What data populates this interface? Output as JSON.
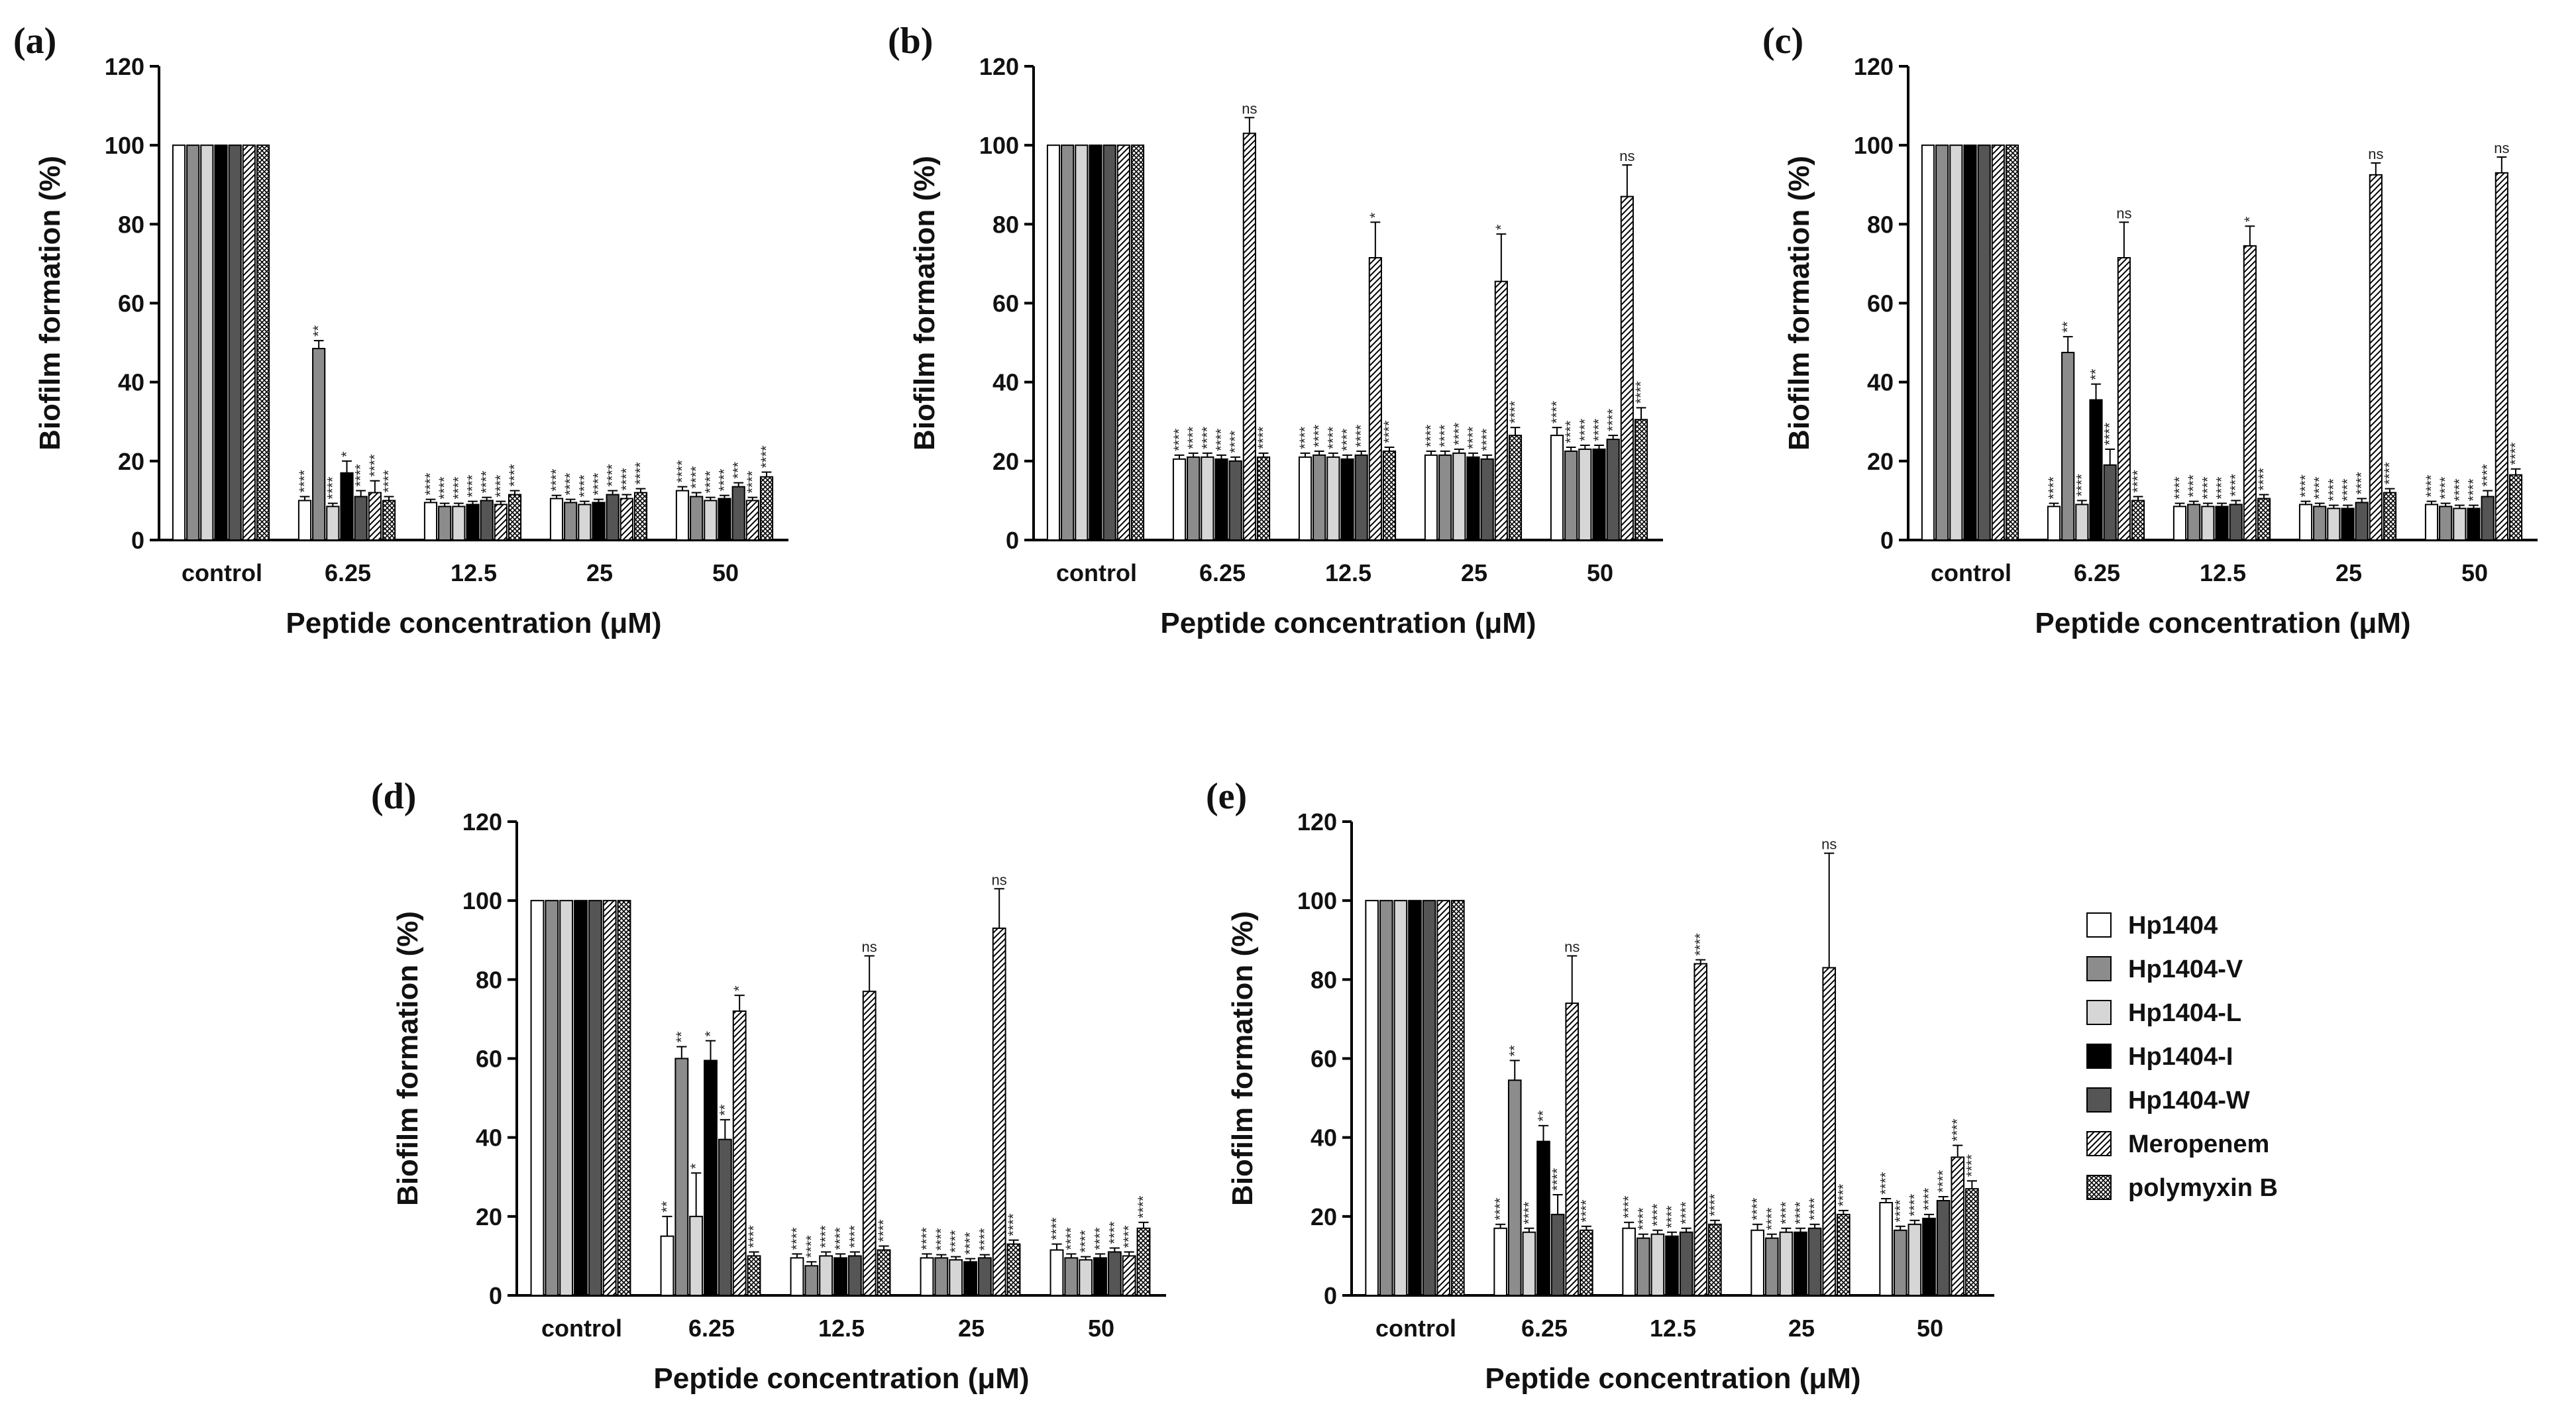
{
  "legend": [
    {
      "name": "Hp1404",
      "fill": "#ffffff"
    },
    {
      "name": "Hp1404-V",
      "fill": "#8c8c8c"
    },
    {
      "name": "Hp1404-L",
      "fill": "#d6d6d6"
    },
    {
      "name": "Hp1404-I",
      "fill": "#000000"
    },
    {
      "name": "Hp1404-W",
      "fill": "#555555"
    },
    {
      "name": "Meropenem",
      "fill": "hatch"
    },
    {
      "name": "polymyxin B",
      "fill": "crosshatch"
    }
  ],
  "chart_data": [
    {
      "panel": "(a)",
      "type": "bar",
      "ylabel": "Biofilm formation (%)",
      "xlabel": "Peptide concentration (μM)",
      "ylim": [
        0,
        120
      ],
      "yticks": [
        "0",
        "20",
        "40",
        "60",
        "80",
        "100",
        "120"
      ],
      "categories": [
        "control",
        "6.25",
        "12.5",
        "25",
        "50"
      ],
      "series": [
        {
          "name": "Hp1404",
          "values": [
            100,
            10,
            9.5,
            10.5,
            12.5
          ],
          "errors": [
            0,
            1,
            0.8,
            0.8,
            1
          ]
        },
        {
          "name": "Hp1404-V",
          "values": [
            100,
            48.5,
            8.5,
            9.5,
            11
          ],
          "errors": [
            0,
            2,
            0.8,
            0.8,
            1
          ]
        },
        {
          "name": "Hp1404-L",
          "values": [
            100,
            8.5,
            8.5,
            9,
            10
          ],
          "errors": [
            0,
            0.8,
            0.8,
            0.8,
            0.8
          ]
        },
        {
          "name": "Hp1404-I",
          "values": [
            100,
            17,
            9,
            9.5,
            10.5
          ],
          "errors": [
            0,
            3,
            0.8,
            0.8,
            0.8
          ]
        },
        {
          "name": "Hp1404-W",
          "values": [
            100,
            11,
            10,
            11.5,
            13.5
          ],
          "errors": [
            0,
            1.5,
            0.8,
            1,
            1
          ]
        },
        {
          "name": "Meropenem",
          "values": [
            100,
            12,
            9,
            10.5,
            10
          ],
          "errors": [
            0,
            3,
            0.8,
            1,
            0.8
          ]
        },
        {
          "name": "polymyxin B",
          "values": [
            100,
            10,
            11.5,
            12,
            16
          ],
          "errors": [
            0,
            1,
            1,
            1,
            1.2
          ]
        }
      ],
      "significance": [
        [
          "",
          "",
          "",
          "",
          "",
          "",
          ""
        ],
        [
          "****",
          "**",
          "****",
          "*",
          "****",
          "****",
          "****"
        ],
        [
          "****",
          "****",
          "****",
          "****",
          "****",
          "****",
          "****"
        ],
        [
          "****",
          "****",
          "****",
          "****",
          "****",
          "****",
          "****"
        ],
        [
          "****",
          "****",
          "****",
          "****",
          "***",
          "****",
          "****"
        ]
      ]
    },
    {
      "panel": "(b)",
      "type": "bar",
      "ylabel": "Biofilm formation (%)",
      "xlabel": "Peptide concentration (μM)",
      "ylim": [
        0,
        120
      ],
      "yticks": [
        "0",
        "20",
        "40",
        "60",
        "80",
        "100",
        "120"
      ],
      "categories": [
        "control",
        "6.25",
        "12.5",
        "25",
        "50"
      ],
      "series": [
        {
          "name": "Hp1404",
          "values": [
            100,
            20.5,
            21,
            21.5,
            26.5
          ],
          "errors": [
            0,
            1,
            1,
            1,
            2
          ]
        },
        {
          "name": "Hp1404-V",
          "values": [
            100,
            21,
            21.5,
            21.5,
            22.5
          ],
          "errors": [
            0,
            1,
            1,
            1,
            1
          ]
        },
        {
          "name": "Hp1404-L",
          "values": [
            100,
            21,
            21,
            22,
            23
          ],
          "errors": [
            0,
            1,
            1,
            1,
            1
          ]
        },
        {
          "name": "Hp1404-I",
          "values": [
            100,
            20.5,
            20.5,
            21,
            23
          ],
          "errors": [
            0,
            1,
            1,
            1,
            1
          ]
        },
        {
          "name": "Hp1404-W",
          "values": [
            100,
            20,
            21.5,
            20.5,
            25.5
          ],
          "errors": [
            0,
            1,
            1,
            1,
            1
          ]
        },
        {
          "name": "Meropenem",
          "values": [
            100,
            103,
            71.5,
            65.5,
            87
          ],
          "errors": [
            0,
            4,
            9,
            12,
            8
          ]
        },
        {
          "name": "polymyxin B",
          "values": [
            100,
            21,
            22.5,
            26.5,
            30.5
          ],
          "errors": [
            0,
            1,
            1,
            2,
            3
          ]
        }
      ],
      "significance": [
        [
          "",
          "",
          "",
          "",
          "",
          "",
          ""
        ],
        [
          "****",
          "****",
          "****",
          "****",
          "****",
          "ns",
          "****"
        ],
        [
          "****",
          "****",
          "****",
          "****",
          "****",
          "*",
          "****"
        ],
        [
          "****",
          "****",
          "****",
          "****",
          "****",
          "*",
          "****"
        ],
        [
          "****",
          "****",
          "****",
          "****",
          "****",
          "ns",
          "****"
        ]
      ]
    },
    {
      "panel": "(c)",
      "type": "bar",
      "ylabel": "Biofilm formation (%)",
      "xlabel": "Peptide concentration (μM)",
      "ylim": [
        0,
        120
      ],
      "yticks": [
        "0",
        "20",
        "40",
        "60",
        "80",
        "100",
        "120"
      ],
      "categories": [
        "control",
        "6.25",
        "12.5",
        "25",
        "50"
      ],
      "series": [
        {
          "name": "Hp1404",
          "values": [
            100,
            8.5,
            8.5,
            9,
            9
          ],
          "errors": [
            0,
            0.8,
            0.8,
            0.8,
            0.8
          ]
        },
        {
          "name": "Hp1404-V",
          "values": [
            100,
            47.5,
            9,
            8.5,
            8.5
          ],
          "errors": [
            0,
            4,
            0.8,
            0.8,
            0.8
          ]
        },
        {
          "name": "Hp1404-L",
          "values": [
            100,
            9,
            8.5,
            8,
            8
          ],
          "errors": [
            0,
            1,
            0.8,
            0.8,
            0.8
          ]
        },
        {
          "name": "Hp1404-I",
          "values": [
            100,
            35.5,
            8.5,
            8,
            8
          ],
          "errors": [
            0,
            4,
            0.8,
            0.8,
            0.8
          ]
        },
        {
          "name": "Hp1404-W",
          "values": [
            100,
            19,
            9,
            9.5,
            11
          ],
          "errors": [
            0,
            4,
            1,
            1,
            1.5
          ]
        },
        {
          "name": "Meropenem",
          "values": [
            100,
            71.5,
            74.5,
            92.5,
            93
          ],
          "errors": [
            0,
            9,
            5,
            3,
            4
          ]
        },
        {
          "name": "polymyxin B",
          "values": [
            100,
            10,
            10.5,
            12,
            16.5
          ],
          "errors": [
            0,
            1,
            1,
            1,
            1.5
          ]
        }
      ],
      "significance": [
        [
          "",
          "",
          "",
          "",
          "",
          "",
          ""
        ],
        [
          "****",
          "**",
          "****",
          "**",
          "****",
          "ns",
          "****"
        ],
        [
          "****",
          "****",
          "****",
          "****",
          "****",
          "*",
          "****"
        ],
        [
          "****",
          "****",
          "****",
          "****",
          "****",
          "ns",
          "****"
        ],
        [
          "****",
          "****",
          "****",
          "****",
          "****",
          "ns",
          "****"
        ]
      ]
    },
    {
      "panel": "(d)",
      "type": "bar",
      "ylabel": "Biofilm formation (%)",
      "xlabel": "Peptide concentration (μM)",
      "ylim": [
        0,
        120
      ],
      "yticks": [
        "0",
        "20",
        "40",
        "60",
        "80",
        "100",
        "120"
      ],
      "categories": [
        "control",
        "6.25",
        "12.5",
        "25",
        "50"
      ],
      "series": [
        {
          "name": "Hp1404",
          "values": [
            100,
            15,
            9.5,
            9.5,
            11.5
          ],
          "errors": [
            0,
            5,
            1,
            1,
            1.5
          ]
        },
        {
          "name": "Hp1404-V",
          "values": [
            100,
            60,
            7.5,
            9.5,
            9.5
          ],
          "errors": [
            0,
            3,
            1,
            0.8,
            1
          ]
        },
        {
          "name": "Hp1404-L",
          "values": [
            100,
            20,
            10,
            9,
            9
          ],
          "errors": [
            0,
            11,
            1,
            0.8,
            0.8
          ]
        },
        {
          "name": "Hp1404-I",
          "values": [
            100,
            59.5,
            9.5,
            8.5,
            9.5
          ],
          "errors": [
            0,
            5,
            1,
            0.8,
            1
          ]
        },
        {
          "name": "Hp1404-W",
          "values": [
            100,
            39.5,
            10,
            9.5,
            11
          ],
          "errors": [
            0,
            5,
            1,
            0.8,
            1
          ]
        },
        {
          "name": "Meropenem",
          "values": [
            100,
            72,
            77,
            93,
            10
          ],
          "errors": [
            0,
            4,
            9,
            10,
            1
          ]
        },
        {
          "name": "polymyxin B",
          "values": [
            100,
            10,
            11.5,
            13,
            17
          ],
          "errors": [
            0,
            1,
            1,
            1,
            1.5
          ]
        }
      ],
      "significance": [
        [
          "",
          "",
          "",
          "",
          "",
          "",
          ""
        ],
        [
          "**",
          "**",
          "*",
          "*",
          "**",
          "*",
          "****"
        ],
        [
          "****",
          "****",
          "****",
          "****",
          "****",
          "ns",
          "****"
        ],
        [
          "****",
          "****",
          "****",
          "****",
          "****",
          "ns",
          "****"
        ],
        [
          "****",
          "****",
          "****",
          "****",
          "****",
          "****",
          "****"
        ]
      ]
    },
    {
      "panel": "(e)",
      "type": "bar",
      "ylabel": "Biofilm formation (%)",
      "xlabel": "Peptide concentration (μM)",
      "ylim": [
        0,
        120
      ],
      "yticks": [
        "0",
        "20",
        "40",
        "60",
        "80",
        "100",
        "120"
      ],
      "categories": [
        "control",
        "6.25",
        "12.5",
        "25",
        "50"
      ],
      "series": [
        {
          "name": "Hp1404",
          "values": [
            100,
            17,
            17,
            16.5,
            23.5
          ],
          "errors": [
            0,
            1,
            1.5,
            1.5,
            1
          ]
        },
        {
          "name": "Hp1404-V",
          "values": [
            100,
            54.5,
            14.5,
            14.5,
            16.5
          ],
          "errors": [
            0,
            5,
            1,
            1,
            1
          ]
        },
        {
          "name": "Hp1404-L",
          "values": [
            100,
            16,
            15.5,
            16,
            18
          ],
          "errors": [
            0,
            1,
            1,
            1,
            1
          ]
        },
        {
          "name": "Hp1404-I",
          "values": [
            100,
            39,
            15,
            16,
            19.5
          ],
          "errors": [
            0,
            4,
            1,
            1,
            1
          ]
        },
        {
          "name": "Hp1404-W",
          "values": [
            100,
            20.5,
            16,
            17,
            24
          ],
          "errors": [
            0,
            5,
            1,
            1,
            1
          ]
        },
        {
          "name": "Meropenem",
          "values": [
            100,
            74,
            84,
            83,
            35
          ],
          "errors": [
            0,
            12,
            1,
            29,
            3
          ]
        },
        {
          "name": "polymyxin B",
          "values": [
            100,
            16.5,
            18,
            20.5,
            27
          ],
          "errors": [
            0,
            1,
            1,
            1,
            2
          ]
        }
      ],
      "significance": [
        [
          "",
          "",
          "",
          "",
          "",
          "",
          ""
        ],
        [
          "****",
          "**",
          "****",
          "**",
          "****",
          "ns",
          "****"
        ],
        [
          "****",
          "****",
          "****",
          "****",
          "****",
          "****",
          "****"
        ],
        [
          "****",
          "****",
          "****",
          "****",
          "****",
          "ns",
          "****"
        ],
        [
          "****",
          "****",
          "****",
          "****",
          "****",
          "****",
          "****"
        ]
      ]
    }
  ]
}
